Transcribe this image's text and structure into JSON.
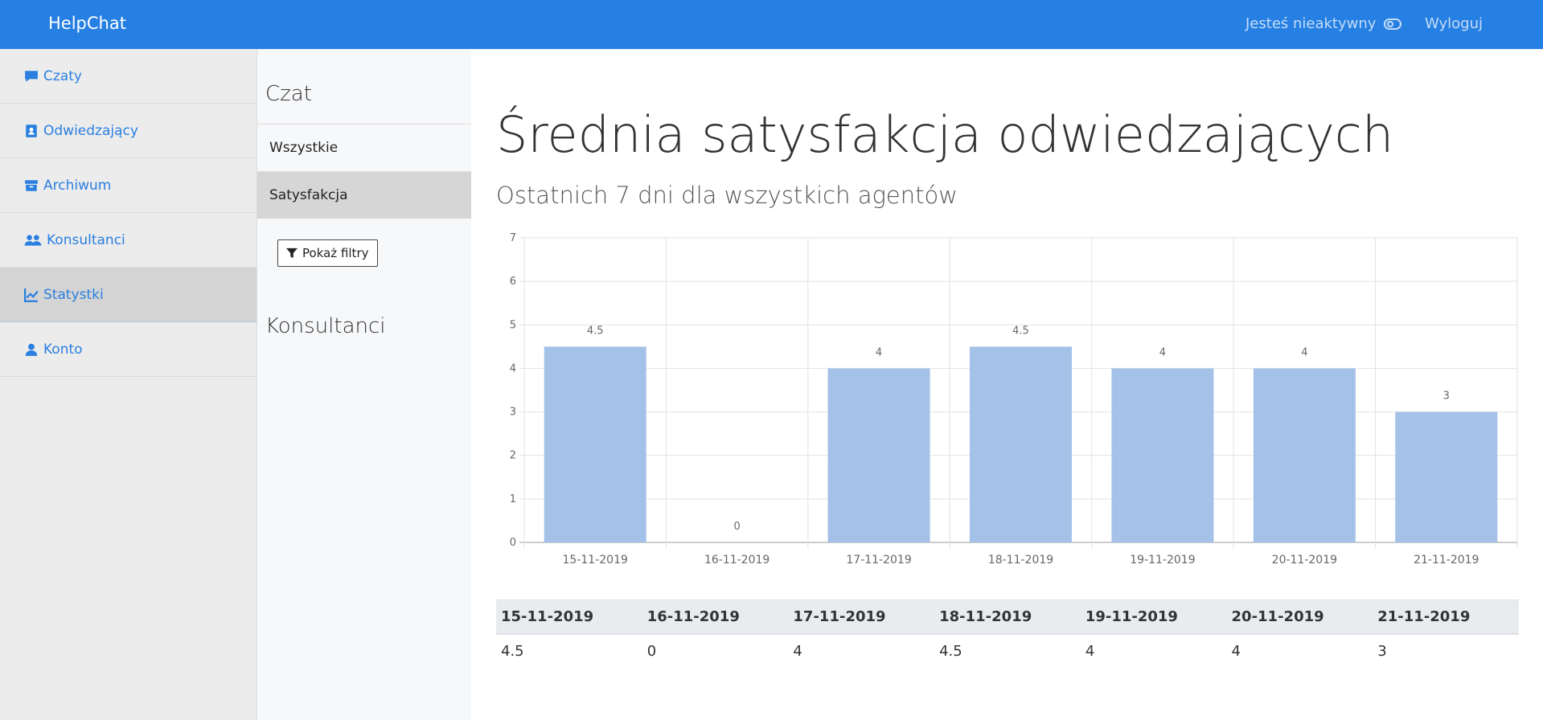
{
  "header": {
    "brand": "HelpChat",
    "status": "Jesteś nieaktywny",
    "logout": "Wyloguj"
  },
  "sidebar": {
    "items": [
      {
        "label": "Czaty",
        "icon": "chat-icon"
      },
      {
        "label": "Odwiedzający",
        "icon": "contact-book-icon"
      },
      {
        "label": "Archiwum",
        "icon": "archive-icon"
      },
      {
        "label": "Konsultanci",
        "icon": "users-icon"
      },
      {
        "label": "Statystki",
        "icon": "line-chart-icon",
        "active": true
      },
      {
        "label": "Konto",
        "icon": "user-icon"
      }
    ]
  },
  "subnav": {
    "title": "Czat",
    "items": [
      "Wszystkie",
      "Satysfakcja"
    ],
    "active": "Satysfakcja",
    "filter_button": "Pokaż filtry",
    "section2_title": "Konsultanci"
  },
  "main": {
    "title": "Średnia satysfakcja odwiedzających",
    "subtitle": "Ostatnich 7 dni dla wszystkich agentów"
  },
  "chart_data": {
    "type": "bar",
    "categories": [
      "15-11-2019",
      "16-11-2019",
      "17-11-2019",
      "18-11-2019",
      "19-11-2019",
      "20-11-2019",
      "21-11-2019"
    ],
    "values": [
      4.5,
      0,
      4,
      4.5,
      4,
      4,
      3
    ],
    "ylim": [
      0,
      7
    ],
    "yticks": [
      0,
      1,
      2,
      3,
      4,
      5,
      6,
      7
    ],
    "grid": true,
    "bar_color": "#a4c2e8",
    "data_labels": true
  },
  "table": {
    "headers": [
      "15-11-2019",
      "16-11-2019",
      "17-11-2019",
      "18-11-2019",
      "19-11-2019",
      "20-11-2019",
      "21-11-2019"
    ],
    "values": [
      "4.5",
      "0",
      "4",
      "4.5",
      "4",
      "4",
      "3"
    ]
  },
  "colors": {
    "accent": "#2680e3",
    "link": "#2a7fe0"
  }
}
